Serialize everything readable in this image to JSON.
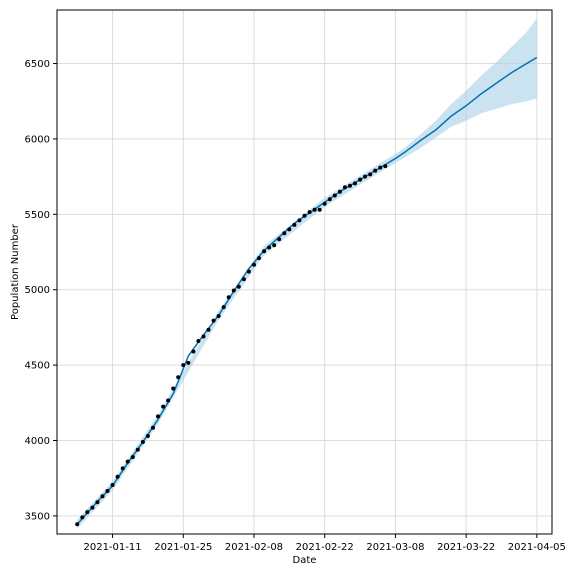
{
  "chart_data": {
    "type": "line",
    "title": "",
    "xlabel": "Date",
    "ylabel": "Population Number",
    "x_ticks": [
      "2021-01-11",
      "2021-01-25",
      "2021-02-08",
      "2021-02-22",
      "2021-03-08",
      "2021-03-22",
      "2021-04-05"
    ],
    "y_ticks": [
      3500,
      4000,
      4500,
      5000,
      5500,
      6000,
      6500
    ],
    "xlim": [
      "2020-12-31",
      "2021-04-08"
    ],
    "ylim": [
      3380,
      6855
    ],
    "grid": true,
    "colors": {
      "forecast": "#0072B2",
      "interval": "#A9CFE8",
      "observed": "#000000"
    },
    "series": [
      {
        "kind": "observed-points",
        "x": [
          "2021-01-04",
          "2021-01-05",
          "2021-01-06",
          "2021-01-07",
          "2021-01-08",
          "2021-01-09",
          "2021-01-10",
          "2021-01-11",
          "2021-01-12",
          "2021-01-13",
          "2021-01-14",
          "2021-01-15",
          "2021-01-16",
          "2021-01-17",
          "2021-01-18",
          "2021-01-19",
          "2021-01-20",
          "2021-01-21",
          "2021-01-22",
          "2021-01-23",
          "2021-01-24",
          "2021-01-25",
          "2021-01-26",
          "2021-01-27",
          "2021-01-28",
          "2021-01-29",
          "2021-01-30",
          "2021-01-31",
          "2021-02-01",
          "2021-02-02",
          "2021-02-03",
          "2021-02-04",
          "2021-02-05",
          "2021-02-06",
          "2021-02-07",
          "2021-02-08",
          "2021-02-09",
          "2021-02-10",
          "2021-02-11",
          "2021-02-12",
          "2021-02-13",
          "2021-02-14",
          "2021-02-15",
          "2021-02-16",
          "2021-02-17",
          "2021-02-18",
          "2021-02-19",
          "2021-02-20",
          "2021-02-21",
          "2021-02-22",
          "2021-02-23",
          "2021-02-24",
          "2021-02-25",
          "2021-02-26",
          "2021-02-27",
          "2021-02-28",
          "2021-03-01",
          "2021-03-02",
          "2021-03-03",
          "2021-03-04",
          "2021-03-05",
          "2021-03-06"
        ],
        "values": [
          3445,
          3490,
          3525,
          3555,
          3590,
          3630,
          3665,
          3705,
          3760,
          3815,
          3860,
          3890,
          3940,
          3990,
          4030,
          4085,
          4160,
          4225,
          4265,
          4345,
          4420,
          4500,
          4515,
          4590,
          4660,
          4690,
          4735,
          4795,
          4825,
          4885,
          4950,
          4995,
          5020,
          5070,
          5120,
          5165,
          5210,
          5255,
          5280,
          5295,
          5335,
          5375,
          5400,
          5430,
          5460,
          5490,
          5515,
          5530,
          5530,
          5570,
          5600,
          5625,
          5650,
          5680,
          5690,
          5705,
          5730,
          5750,
          5765,
          5790,
          5810,
          5820
        ]
      },
      {
        "kind": "forecast-line",
        "x": [
          "2021-01-04",
          "2021-01-06",
          "2021-01-08",
          "2021-01-11",
          "2021-01-14",
          "2021-01-17",
          "2021-01-20",
          "2021-01-23",
          "2021-01-26",
          "2021-01-29",
          "2021-02-01",
          "2021-02-04",
          "2021-02-07",
          "2021-02-10",
          "2021-02-13",
          "2021-02-16",
          "2021-02-19",
          "2021-02-22",
          "2021-02-25",
          "2021-02-28",
          "2021-03-03",
          "2021-03-06",
          "2021-03-08",
          "2021-03-10",
          "2021-03-13",
          "2021-03-16",
          "2021-03-19",
          "2021-03-22",
          "2021-03-25",
          "2021-03-28",
          "2021-03-31",
          "2021-04-03",
          "2021-04-05"
        ],
        "values": [
          3445,
          3520,
          3595,
          3700,
          3850,
          3990,
          4140,
          4310,
          4560,
          4700,
          4830,
          4990,
          5140,
          5260,
          5350,
          5440,
          5510,
          5580,
          5650,
          5710,
          5770,
          5830,
          5870,
          5915,
          5990,
          6060,
          6150,
          6220,
          6300,
          6370,
          6440,
          6500,
          6540
        ]
      },
      {
        "kind": "uncertainty-interval",
        "x": [
          "2021-01-04",
          "2021-01-11",
          "2021-01-20",
          "2021-02-01",
          "2021-02-10",
          "2021-02-22",
          "2021-03-06",
          "2021-03-08",
          "2021-03-10",
          "2021-03-13",
          "2021-03-16",
          "2021-03-19",
          "2021-03-22",
          "2021-03-25",
          "2021-03-28",
          "2021-03-31",
          "2021-04-03",
          "2021-04-05"
        ],
        "upper": [
          3475,
          3730,
          4170,
          4860,
          5290,
          5610,
          5860,
          5900,
          5945,
          6030,
          6120,
          6230,
          6320,
          6420,
          6510,
          6610,
          6710,
          6800
        ],
        "lower": [
          3415,
          3670,
          4110,
          4800,
          5230,
          5550,
          5800,
          5840,
          5880,
          5940,
          6010,
          6080,
          6120,
          6170,
          6200,
          6230,
          6250,
          6270
        ]
      }
    ]
  }
}
